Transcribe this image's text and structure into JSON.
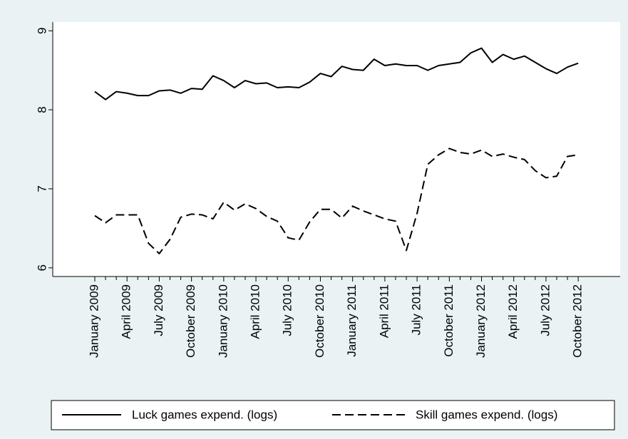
{
  "chart_data": {
    "type": "line",
    "categories": [
      "January 2009",
      null,
      null,
      "April 2009",
      null,
      null,
      "July 2009",
      null,
      null,
      "October 2009",
      null,
      null,
      "January 2010",
      null,
      null,
      "April 2010",
      null,
      null,
      "July 2010",
      null,
      null,
      "October 2010",
      null,
      null,
      "January 2011",
      null,
      null,
      "April 2011",
      null,
      null,
      "July 2011",
      null,
      null,
      "October 2011",
      null,
      null,
      "January 2012",
      null,
      null,
      "April 2012",
      null,
      null,
      "July 2012",
      null,
      null,
      "October 2012"
    ],
    "series": [
      {
        "name": "Luck games expend. (logs)",
        "color": "#000000",
        "style": "solid",
        "values": [
          8.23,
          8.13,
          8.23,
          8.21,
          8.18,
          8.18,
          8.24,
          8.25,
          8.21,
          8.27,
          8.26,
          8.43,
          8.37,
          8.28,
          8.37,
          8.33,
          8.34,
          8.28,
          8.29,
          8.28,
          8.35,
          8.46,
          8.42,
          8.55,
          8.51,
          8.5,
          8.64,
          8.56,
          8.58,
          8.56,
          8.56,
          8.5,
          8.56,
          8.58,
          8.6,
          8.72,
          8.78,
          8.6,
          8.7,
          8.64,
          8.68,
          8.6,
          8.52,
          8.46,
          8.54,
          8.59
        ]
      },
      {
        "name": "Skill games expend. (logs)",
        "color": "#000000",
        "style": "dashed",
        "values": [
          6.66,
          6.57,
          6.67,
          6.67,
          6.67,
          6.31,
          6.18,
          6.36,
          6.64,
          6.68,
          6.67,
          6.62,
          6.83,
          6.73,
          6.81,
          6.75,
          6.65,
          6.59,
          6.38,
          6.35,
          6.58,
          6.74,
          6.74,
          6.63,
          6.78,
          6.72,
          6.67,
          6.62,
          6.59,
          6.22,
          6.69,
          7.31,
          7.43,
          7.51,
          7.46,
          7.44,
          7.49,
          7.41,
          7.44,
          7.4,
          7.37,
          7.23,
          7.14,
          7.16,
          7.41,
          7.43
        ]
      }
    ],
    "ylim": [
      5.89,
      9.11
    ],
    "yticks": [
      6,
      7,
      8,
      9
    ],
    "grid": false,
    "legend": "bottom"
  }
}
